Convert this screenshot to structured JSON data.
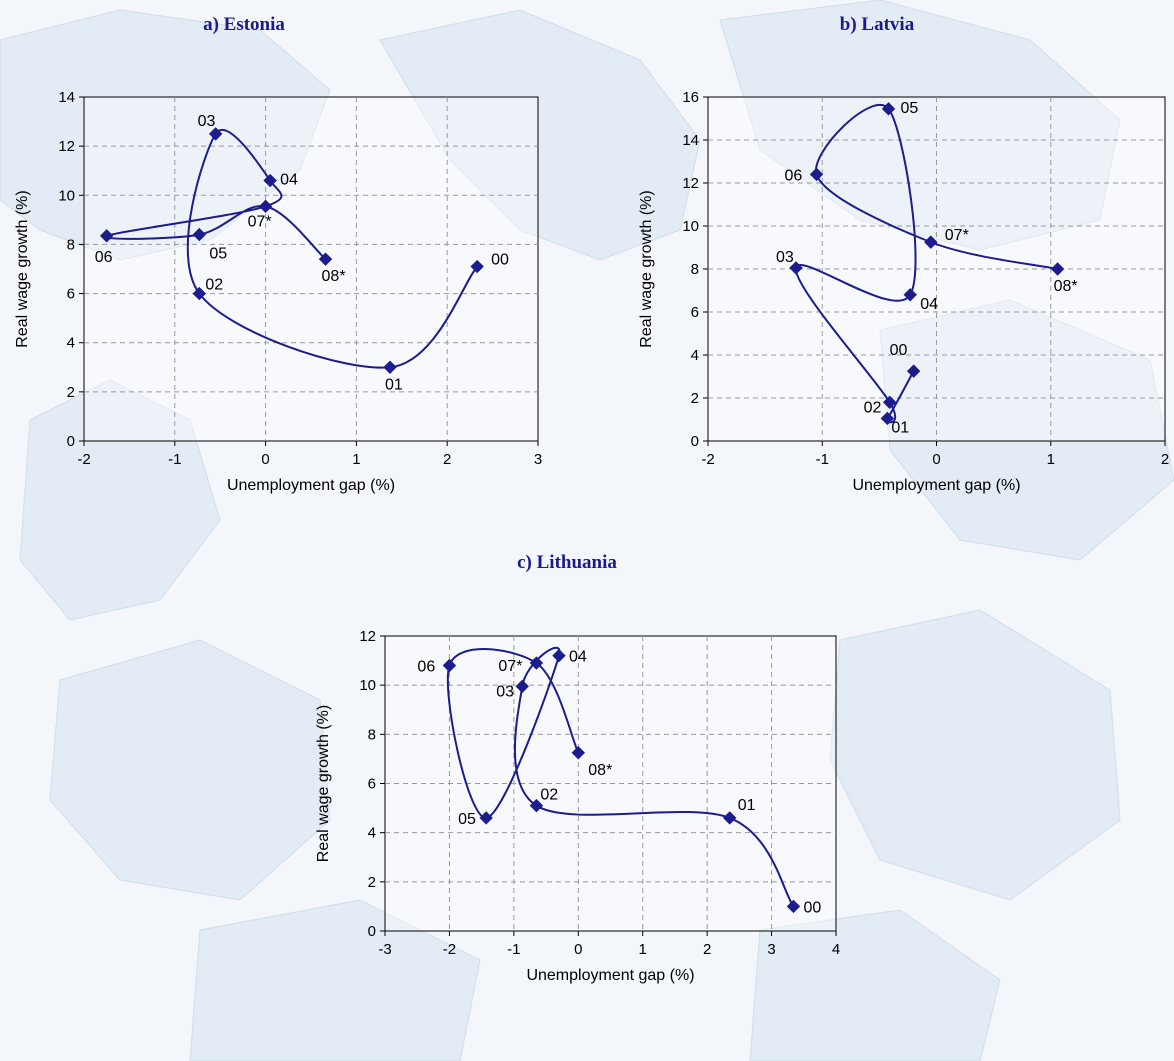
{
  "chart_data": [
    {
      "type": "scatter",
      "title": "a) Estonia",
      "xlabel": "Unemployment gap (%)",
      "ylabel": "Real wage growth (%)",
      "xlim": [
        -2,
        3
      ],
      "ylim": [
        0,
        14
      ],
      "xticks": [
        -2,
        -1,
        0,
        1,
        2,
        3
      ],
      "yticks": [
        0,
        2,
        4,
        6,
        8,
        10,
        12,
        14
      ],
      "grid": true,
      "color": "#1c1c8c",
      "points": [
        {
          "label": "00",
          "x": 2.33,
          "y": 7.1
        },
        {
          "label": "01",
          "x": 1.37,
          "y": 3.0
        },
        {
          "label": "02",
          "x": -0.73,
          "y": 6.0
        },
        {
          "label": "03",
          "x": -0.55,
          "y": 12.5
        },
        {
          "label": "04",
          "x": 0.05,
          "y": 10.6
        },
        {
          "label": "05",
          "x": -0.73,
          "y": 8.4
        },
        {
          "label": "06",
          "x": -1.75,
          "y": 8.35
        },
        {
          "label": "07*",
          "x": 0.0,
          "y": 9.55
        },
        {
          "label": "08*",
          "x": 0.66,
          "y": 7.4
        }
      ]
    },
    {
      "type": "scatter",
      "title": "b) Latvia",
      "xlabel": "Unemployment gap (%)",
      "ylabel": "Real wage growth (%)",
      "xlim": [
        -2,
        2
      ],
      "ylim": [
        0,
        16
      ],
      "xticks": [
        -2,
        -1,
        0,
        1,
        2
      ],
      "yticks": [
        0,
        2,
        4,
        6,
        8,
        10,
        12,
        14,
        16
      ],
      "grid": true,
      "color": "#1c1c8c",
      "points": [
        {
          "label": "00",
          "x": -0.2,
          "y": 3.25
        },
        {
          "label": "01",
          "x": -0.43,
          "y": 1.05
        },
        {
          "label": "02",
          "x": -0.41,
          "y": 1.8
        },
        {
          "label": "03",
          "x": -1.23,
          "y": 8.05
        },
        {
          "label": "04",
          "x": -0.23,
          "y": 6.8
        },
        {
          "label": "05",
          "x": -0.42,
          "y": 15.45
        },
        {
          "label": "06",
          "x": -1.05,
          "y": 12.4
        },
        {
          "label": "07*",
          "x": -0.05,
          "y": 9.25
        },
        {
          "label": "08*",
          "x": 1.06,
          "y": 8.0
        }
      ]
    },
    {
      "type": "scatter",
      "title": "c) Lithuania",
      "xlabel": "Unemployment gap (%)",
      "ylabel": "Real wage growth (%)",
      "xlim": [
        -3,
        4
      ],
      "ylim": [
        0,
        12
      ],
      "xticks": [
        -3,
        -2,
        -1,
        0,
        1,
        2,
        3,
        4
      ],
      "yticks": [
        0,
        2,
        4,
        6,
        8,
        10,
        12
      ],
      "grid": true,
      "color": "#1c1c8c",
      "points": [
        {
          "label": "00",
          "x": 3.34,
          "y": 1.0
        },
        {
          "label": "01",
          "x": 2.35,
          "y": 4.6
        },
        {
          "label": "02",
          "x": -0.65,
          "y": 5.1
        },
        {
          "label": "03",
          "x": -0.87,
          "y": 9.95
        },
        {
          "label": "04",
          "x": -0.3,
          "y": 11.2
        },
        {
          "label": "05",
          "x": -1.43,
          "y": 4.6
        },
        {
          "label": "06",
          "x": -2.0,
          "y": 10.8
        },
        {
          "label": "07*",
          "x": -0.65,
          "y": 10.9
        },
        {
          "label": "08*",
          "x": 0.0,
          "y": 7.25
        }
      ]
    }
  ]
}
